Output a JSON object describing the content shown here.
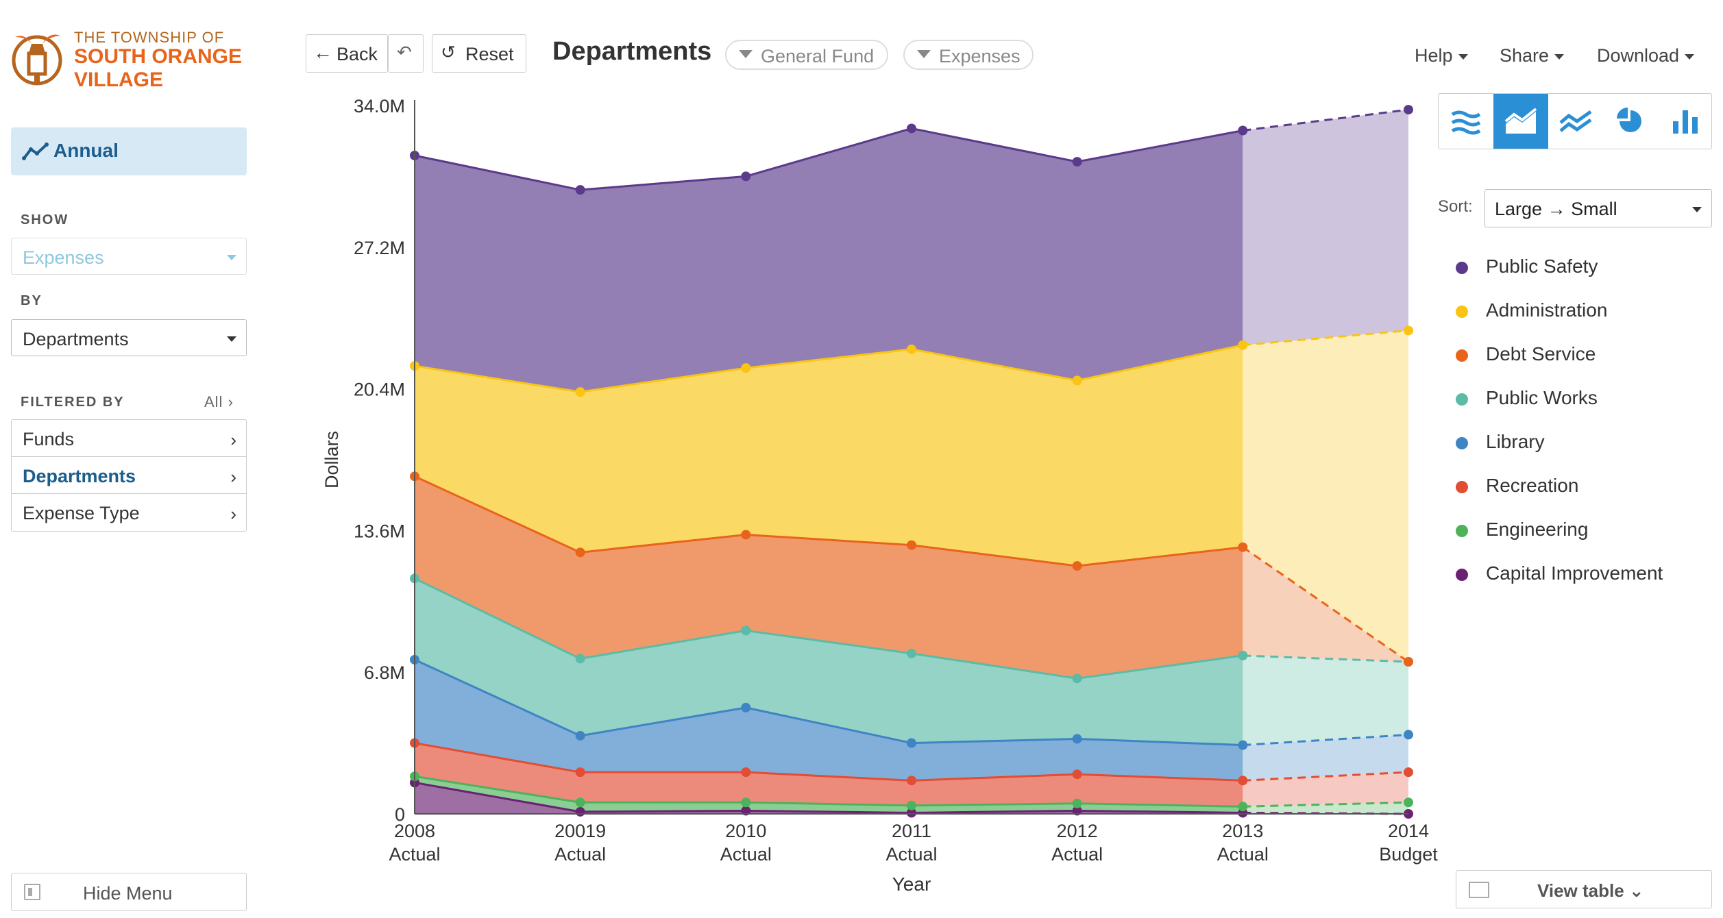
{
  "logo": {
    "line1": "THE TOWNSHIP OF",
    "line2": "SOUTH ORANGE",
    "line3": "VILLAGE"
  },
  "sidebar": {
    "annual_label": "Annual",
    "show_heading": "SHOW",
    "show_value": "Expenses",
    "by_heading": "BY",
    "by_value": "Departments",
    "filtered_heading": "FILTERED BY",
    "all_link": "All",
    "filters": [
      {
        "label": "Funds",
        "active": false
      },
      {
        "label": "Departments",
        "active": true
      },
      {
        "label": "Expense Type",
        "active": false
      }
    ],
    "hide_menu": "Hide Menu"
  },
  "header": {
    "back_label": "Back",
    "reset_label": "Reset",
    "title": "Departments",
    "pills": [
      "General Fund",
      "Expenses"
    ],
    "help": "Help",
    "share": "Share",
    "download": "Download"
  },
  "controls": {
    "chart_types": [
      "stream-icon",
      "stacked-area-icon",
      "line-icon",
      "pie-icon",
      "bar-icon"
    ],
    "active_chart_type": 1,
    "sort_label": "Sort:",
    "sort_from": "Large",
    "sort_to": "Small",
    "view_table": "View table"
  },
  "chart_data": {
    "type": "area",
    "stacked": true,
    "title": "Departments",
    "xlabel": "Year",
    "ylabel": "Dollars",
    "ylim": [
      0,
      34.0
    ],
    "yticks": [
      "0",
      "6.8M",
      "13.6M",
      "20.4M",
      "27.2M",
      "34.0M"
    ],
    "ytick_values": [
      0,
      6.8,
      13.6,
      20.4,
      27.2,
      34.0
    ],
    "categories": [
      [
        "2008",
        "Actual"
      ],
      [
        "20019",
        "Actual"
      ],
      [
        "2010",
        "Actual"
      ],
      [
        "2011",
        "Actual"
      ],
      [
        "2012",
        "Actual"
      ],
      [
        "2013",
        "Actual"
      ],
      [
        "2014",
        "Budget"
      ]
    ],
    "projected_from_index": 5,
    "series": [
      {
        "name": "Capital Improvement",
        "color": "#6a2272",
        "values": [
          1.5,
          0.1,
          0.15,
          0.05,
          0.15,
          0.05,
          0.0
        ]
      },
      {
        "name": "Engineering",
        "color": "#4db35b",
        "values": [
          0.3,
          0.45,
          0.4,
          0.35,
          0.35,
          0.3,
          0.55
        ]
      },
      {
        "name": "Recreation",
        "color": "#e24d34",
        "values": [
          1.6,
          1.45,
          1.45,
          1.2,
          1.4,
          1.25,
          1.45
        ]
      },
      {
        "name": "Library",
        "color": "#3f84c4",
        "values": [
          4.0,
          1.75,
          3.1,
          1.8,
          1.7,
          1.7,
          1.8
        ]
      },
      {
        "name": "Public Works",
        "color": "#5bbba6",
        "values": [
          3.9,
          3.7,
          3.7,
          4.3,
          2.9,
          4.3,
          3.5
        ]
      },
      {
        "name": "Debt Service",
        "color": "#e8641b",
        "values": [
          4.9,
          5.1,
          4.6,
          5.2,
          5.4,
          5.2,
          0.0
        ]
      },
      {
        "name": "Administration",
        "color": "#f9c412",
        "values": [
          5.3,
          7.7,
          8.0,
          9.4,
          8.9,
          9.7,
          15.9
        ]
      },
      {
        "name": "Public Safety",
        "color": "#5b3a8c",
        "values": [
          10.1,
          9.7,
          9.2,
          10.6,
          10.5,
          10.3,
          10.6
        ]
      }
    ]
  }
}
